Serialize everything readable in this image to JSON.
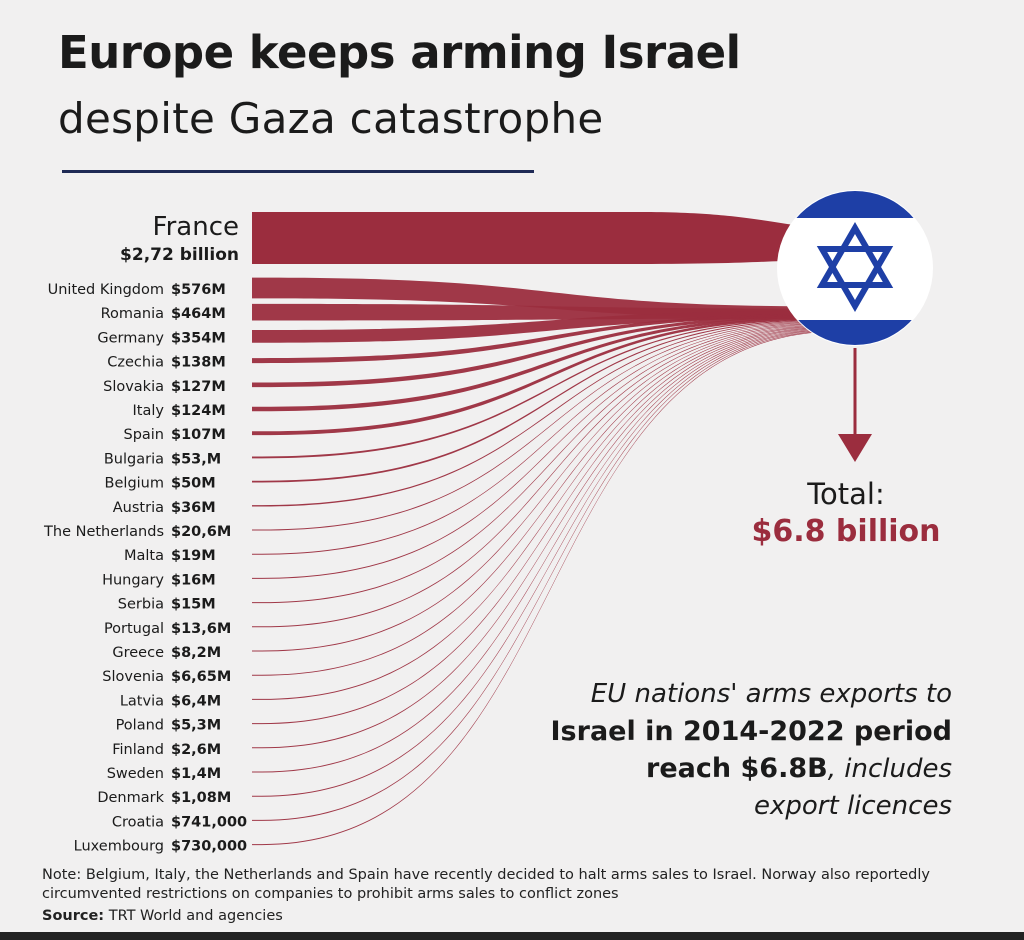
{
  "header": {
    "title": "Europe keeps arming Israel",
    "subtitle": "despite Gaza catastrophe"
  },
  "total": {
    "label": "Total:",
    "value": "$6.8 billion"
  },
  "caption": {
    "line1": "EU nations' arms exports to",
    "line2": "Israel in 2014-2022 period",
    "line3_bold": "reach $6.8B",
    "line3_italic": ", includes",
    "line4": "export licences"
  },
  "footer": {
    "note": "Note: Belgium, Italy, the Netherlands and Spain have recently decided to halt arms sales to Israel. Norway also reportedly circumvented restrictions on companies to prohibit arms sales to conflict zones",
    "source_label": "Source:",
    "source_text": " TRT World and agencies"
  },
  "colors": {
    "flow": "#9b2d3e",
    "flag_blue": "#1e3fa6",
    "title_rule": "#1f2a55",
    "arrow": "#9b2d3e"
  },
  "chart_data": {
    "type": "sankey",
    "target": "Israel",
    "unit": "USD",
    "total": 6800000000,
    "flows": [
      {
        "country": "France",
        "label": "$2,72 billion",
        "value": 2720000000
      },
      {
        "country": "United Kingdom",
        "label": "$576M",
        "value": 576000000
      },
      {
        "country": "Romania",
        "label": "$464M",
        "value": 464000000
      },
      {
        "country": "Germany",
        "label": "$354M",
        "value": 354000000
      },
      {
        "country": "Czechia",
        "label": "$138M",
        "value": 138000000
      },
      {
        "country": "Slovakia",
        "label": "$127M",
        "value": 127000000
      },
      {
        "country": "Italy",
        "label": "$124M",
        "value": 124000000
      },
      {
        "country": "Spain",
        "label": "$107M",
        "value": 107000000
      },
      {
        "country": "Bulgaria",
        "label": "$53,M",
        "value": 53000000
      },
      {
        "country": "Belgium",
        "label": "$50M",
        "value": 50000000
      },
      {
        "country": "Austria",
        "label": "$36M",
        "value": 36000000
      },
      {
        "country": "The Netherlands",
        "label": "$20,6M",
        "value": 20600000
      },
      {
        "country": "Malta",
        "label": "$19M",
        "value": 19000000
      },
      {
        "country": "Hungary",
        "label": "$16M",
        "value": 16000000
      },
      {
        "country": "Serbia",
        "label": "$15M",
        "value": 15000000
      },
      {
        "country": "Portugal",
        "label": "$13,6M",
        "value": 13600000
      },
      {
        "country": "Greece",
        "label": "$8,2M",
        "value": 8200000
      },
      {
        "country": "Slovenia",
        "label": "$6,65M",
        "value": 6650000
      },
      {
        "country": "Latvia",
        "label": "$6,4M",
        "value": 6400000
      },
      {
        "country": "Poland",
        "label": "$5,3M",
        "value": 5300000
      },
      {
        "country": "Finland",
        "label": "$2,6M",
        "value": 2600000
      },
      {
        "country": "Sweden",
        "label": "$1,4M",
        "value": 1400000
      },
      {
        "country": "Denmark",
        "label": "$1,08M",
        "value": 1080000
      },
      {
        "country": "Croatia",
        "label": "$741,000",
        "value": 741000
      },
      {
        "country": "Luxembourg",
        "label": "$730,000",
        "value": 730000
      }
    ]
  }
}
